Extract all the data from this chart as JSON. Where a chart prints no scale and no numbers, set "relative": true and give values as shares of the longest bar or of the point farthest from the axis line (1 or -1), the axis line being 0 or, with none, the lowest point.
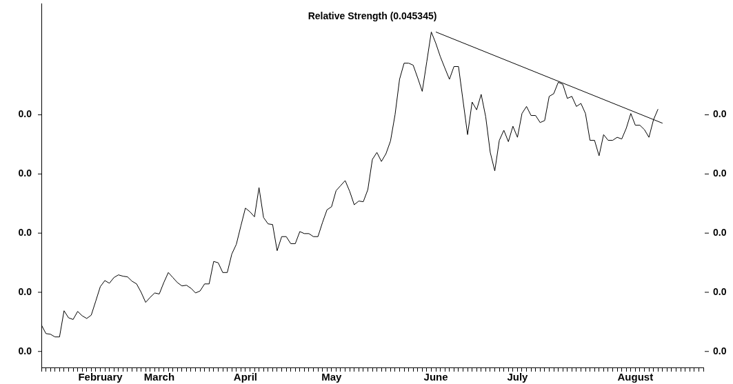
{
  "chart_data": {
    "type": "line",
    "title": "Relative Strength (0.045345)",
    "relative": true,
    "categories": [
      null,
      null,
      null,
      null,
      null,
      null,
      null,
      null,
      null,
      null,
      null,
      null,
      null,
      "February",
      null,
      null,
      null,
      null,
      null,
      null,
      null,
      null,
      null,
      null,
      null,
      null,
      "March",
      null,
      null,
      null,
      null,
      null,
      null,
      null,
      null,
      null,
      null,
      null,
      null,
      null,
      null,
      null,
      null,
      null,
      null,
      "April",
      null,
      null,
      null,
      null,
      null,
      null,
      null,
      null,
      null,
      null,
      null,
      null,
      null,
      null,
      null,
      null,
      null,
      null,
      "May",
      null,
      null,
      null,
      null,
      null,
      null,
      null,
      null,
      null,
      null,
      null,
      null,
      null,
      null,
      null,
      null,
      null,
      null,
      null,
      null,
      null,
      null,
      "June",
      null,
      null,
      null,
      null,
      null,
      null,
      null,
      null,
      null,
      null,
      null,
      null,
      null,
      null,
      null,
      null,
      null,
      "July",
      null,
      null,
      null,
      null,
      null,
      null,
      null,
      null,
      null,
      null,
      null,
      null,
      null,
      null,
      null,
      null,
      null,
      null,
      null,
      null,
      null,
      null,
      null,
      null,
      null,
      "August",
      null,
      null,
      null,
      null,
      null,
      null,
      null,
      null,
      null,
      null,
      null,
      null,
      null,
      null,
      null
    ],
    "series": [
      {
        "color": "#000000",
        "values": [
          0.127,
          0.101,
          0.099,
          0.091,
          0.091,
          0.169,
          0.148,
          0.143,
          0.167,
          0.154,
          0.146,
          0.156,
          0.198,
          0.241,
          0.259,
          0.251,
          0.268,
          0.276,
          0.272,
          0.27,
          0.257,
          0.249,
          0.224,
          0.194,
          0.209,
          0.222,
          0.219,
          0.253,
          0.283,
          0.268,
          0.253,
          0.243,
          0.245,
          0.236,
          0.222,
          0.228,
          0.249,
          0.249,
          0.316,
          0.312,
          0.283,
          0.283,
          0.338,
          0.367,
          0.422,
          0.475,
          0.464,
          0.449,
          0.536,
          0.447,
          0.428,
          0.426,
          0.348,
          0.39,
          0.39,
          0.369,
          0.369,
          0.405,
          0.399,
          0.399,
          0.39,
          0.39,
          0.432,
          0.47,
          0.479,
          0.527,
          0.542,
          0.557,
          0.525,
          0.485,
          0.496,
          0.494,
          0.53,
          0.62,
          0.641,
          0.614,
          0.637,
          0.675,
          0.753,
          0.859,
          0.907,
          0.907,
          0.901,
          0.863,
          0.823,
          0.911,
          1,
          0.966,
          0.926,
          0.892,
          0.859,
          0.897,
          0.897,
          0.795,
          0.694,
          0.791,
          0.768,
          0.814,
          0.747,
          0.641,
          0.586,
          0.677,
          0.707,
          0.673,
          0.719,
          0.686,
          0.757,
          0.778,
          0.751,
          0.751,
          0.73,
          0.736,
          0.808,
          0.816,
          0.85,
          0.844,
          0.802,
          0.808,
          0.778,
          0.787,
          0.757,
          0.677,
          0.677,
          0.631,
          0.694,
          0.677,
          0.677,
          0.686,
          0.681,
          0.713,
          0.757,
          0.722,
          0.722,
          0.709,
          0.686,
          0.738,
          0.77,
          null,
          null,
          null,
          null,
          null,
          null,
          null,
          null,
          null,
          null
        ]
      },
      {
        "color": "#000000",
        "values": [
          null,
          null,
          null,
          null,
          null,
          null,
          null,
          null,
          null,
          null,
          null,
          null,
          null,
          null,
          null,
          null,
          null,
          null,
          null,
          null,
          null,
          null,
          null,
          null,
          null,
          null,
          null,
          null,
          null,
          null,
          null,
          null,
          null,
          null,
          null,
          null,
          null,
          null,
          null,
          null,
          null,
          null,
          null,
          null,
          null,
          null,
          null,
          null,
          null,
          null,
          null,
          null,
          null,
          null,
          null,
          null,
          null,
          null,
          null,
          null,
          null,
          null,
          null,
          null,
          null,
          null,
          null,
          null,
          null,
          null,
          null,
          null,
          null,
          null,
          null,
          null,
          null,
          null,
          null,
          null,
          null,
          null,
          null,
          null,
          null,
          null,
          null,
          1,
          null,
          null,
          null,
          null,
          null,
          null,
          null,
          null,
          null,
          null,
          null,
          null,
          null,
          null,
          null,
          null,
          null,
          null,
          null,
          null,
          null,
          null,
          null,
          null,
          null,
          null,
          null,
          null,
          null,
          null,
          null,
          null,
          null,
          null,
          null,
          null,
          null,
          null,
          null,
          null,
          null,
          null,
          null,
          null,
          null,
          null,
          null,
          null,
          null,
          0.728,
          null,
          null,
          null,
          null,
          null,
          null,
          null,
          null,
          null
        ]
      }
    ],
    "annotations": [
      "0.0",
      "0.0",
      "0.0",
      "0.0",
      "0.0",
      "0.0",
      "0.0",
      "0.0",
      "0.0",
      "0.0"
    ],
    "grid": false,
    "legend": false,
    "marker": "none",
    "line_style": "solid"
  }
}
